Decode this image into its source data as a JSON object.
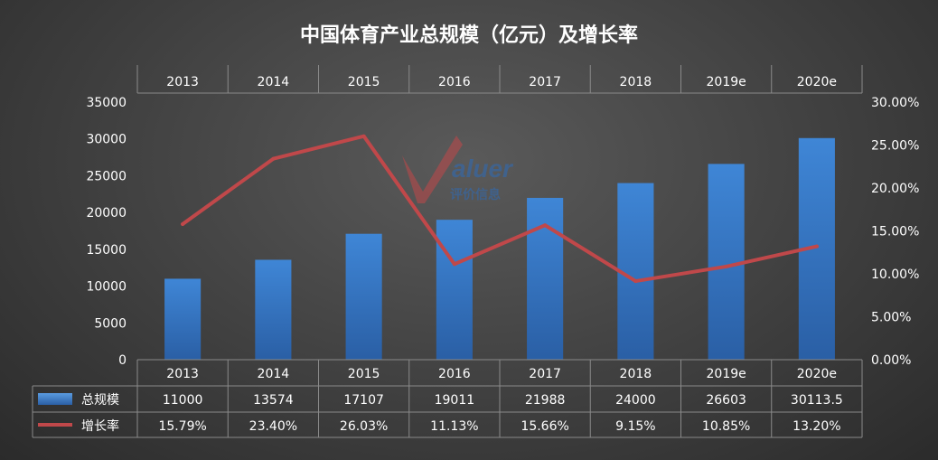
{
  "chart_data": {
    "type": "bar",
    "title": "中国体育产业总规模（亿元）及增长率",
    "categories": [
      "2013",
      "2014",
      "2015",
      "2016",
      "2017",
      "2018",
      "2019e",
      "2020e"
    ],
    "series": [
      {
        "name": "总规模",
        "type": "bar",
        "axis": "left",
        "values": [
          11000,
          13574,
          17107,
          19011,
          21988,
          24000,
          26603,
          30113.5
        ],
        "labels": [
          "11000",
          "13574",
          "17107",
          "19011",
          "21988",
          "24000",
          "26603",
          "30113.5"
        ]
      },
      {
        "name": "增长率",
        "type": "line",
        "axis": "right",
        "values": [
          15.79,
          23.4,
          26.03,
          11.13,
          15.66,
          9.15,
          10.85,
          13.2
        ],
        "labels": [
          "15.79%",
          "23.40%",
          "26.03%",
          "11.13%",
          "15.66%",
          "9.15%",
          "10.85%",
          "13.20%"
        ]
      }
    ],
    "y_left": {
      "ylim": [
        0,
        35000
      ],
      "ticks": [
        "0",
        "5000",
        "10000",
        "15000",
        "20000",
        "25000",
        "30000",
        "35000"
      ]
    },
    "y_right": {
      "ylim": [
        0,
        30
      ],
      "ticks": [
        "0.00%",
        "5.00%",
        "10.00%",
        "15.00%",
        "20.00%",
        "25.00%",
        "30.00%"
      ]
    },
    "grid": false,
    "legend": "data-table",
    "colors": {
      "bar": "#2e6bb8",
      "bar_light": "#3f86d6",
      "line": "#c0484a",
      "grid_line": "#8a8a8a"
    }
  },
  "watermark": {
    "brand": "Valuer",
    "subtitle": "评价信息"
  }
}
